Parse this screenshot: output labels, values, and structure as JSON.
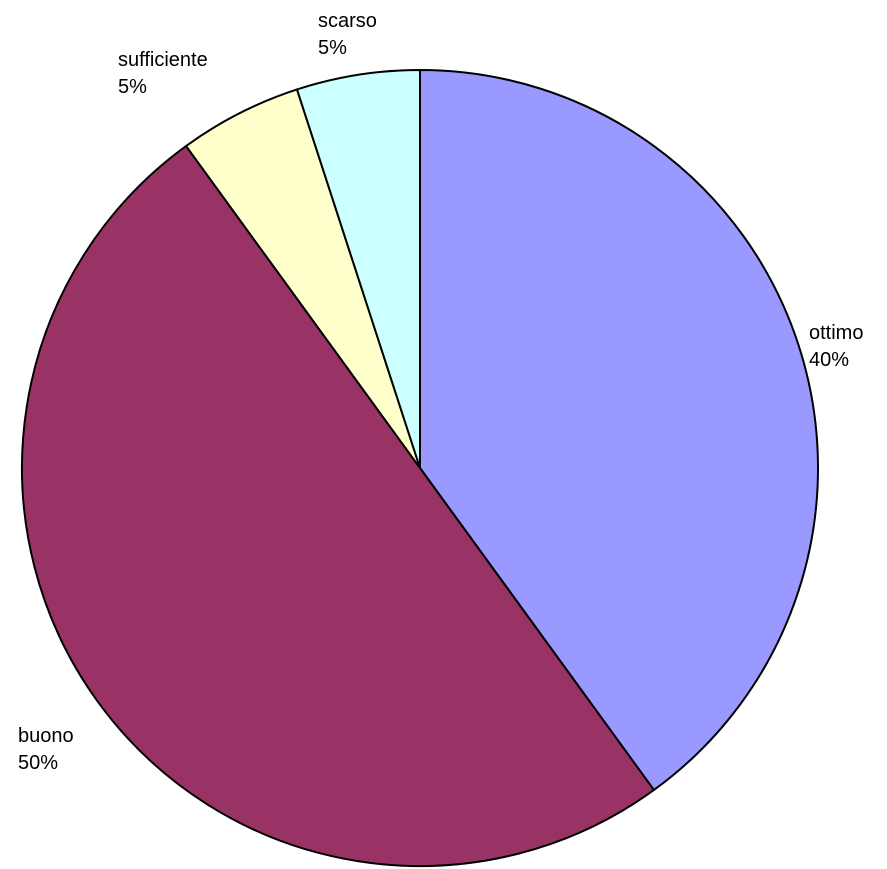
{
  "chart_data": {
    "type": "pie",
    "title": "",
    "categories": [
      "ottimo",
      "buono",
      "sufficiente",
      "scarso"
    ],
    "values": [
      40,
      50,
      5,
      5
    ],
    "percent_labels": [
      "40%",
      "50%",
      "5%",
      "5%"
    ],
    "colors": [
      "#9999ff",
      "#993366",
      "#ffffcc",
      "#ccffff"
    ],
    "start_angle_deg": 0,
    "direction": "clockwise",
    "legend": "none",
    "labels_outside": true
  }
}
